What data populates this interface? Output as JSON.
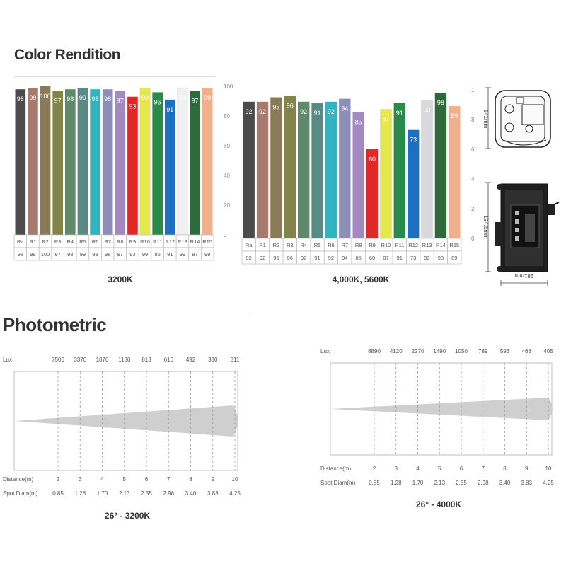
{
  "headings": {
    "color_rendition": "Color Rendition",
    "photometric": "Photometric"
  },
  "captions": {
    "cri_left": "3200K",
    "cri_right": "4,000K, 5600K",
    "photo_left": "26° - 3200K",
    "photo_right": "26° - 4000K"
  },
  "dimensions": {
    "height_label": "141mm",
    "depth_label": "194.5mm",
    "width_label": "181mm"
  },
  "chart_data": [
    {
      "type": "bar",
      "title": "",
      "caption": "3200K",
      "categories": [
        "Ra",
        "R1",
        "R2",
        "R3",
        "R4",
        "R5",
        "R6",
        "R7",
        "R8",
        "R9",
        "R10",
        "R11",
        "R12",
        "R13",
        "R14",
        "R15"
      ],
      "values": [
        98,
        99,
        100,
        97,
        98,
        99,
        98,
        98,
        97,
        93,
        99,
        96,
        91,
        99,
        97,
        99
      ],
      "colors": [
        "#4b4b4b",
        "#a87a6e",
        "#8a7a55",
        "#83844a",
        "#5f8a6a",
        "#5a8a86",
        "#2eb5c0",
        "#8d8fb8",
        "#a389c0",
        "#e02828",
        "#e4e84a",
        "#2a8a4a",
        "#1f6fc0",
        "#f0f0f2",
        "#2e6a3a",
        "#f0b08c"
      ],
      "ylim": [
        0,
        100
      ],
      "yticks": [
        0,
        20,
        40,
        60,
        80,
        100
      ]
    },
    {
      "type": "bar",
      "title": "",
      "caption": "4,000K, 5600K",
      "categories": [
        "Ra",
        "R1",
        "R2",
        "R3",
        "R4",
        "R5",
        "R6",
        "R7",
        "R8",
        "R9",
        "R10",
        "R11",
        "R12",
        "R13",
        "R14",
        "R15"
      ],
      "values": [
        92,
        92,
        95,
        96,
        92,
        91,
        92,
        94,
        85,
        60,
        87,
        91,
        73,
        93,
        98,
        89
      ],
      "colors": [
        "#4b4b4b",
        "#a87a6e",
        "#8a7a55",
        "#83844a",
        "#5f8a6a",
        "#5a8a86",
        "#2eb5c0",
        "#8d8fb8",
        "#a389c0",
        "#e02828",
        "#e4e84a",
        "#2a8a4a",
        "#1f6fc0",
        "#d9d9dd",
        "#2e6a3a",
        "#f0b08c"
      ],
      "ylim": [
        0,
        100
      ],
      "yticks": [
        0,
        20,
        40,
        60,
        80,
        100
      ]
    },
    {
      "type": "table",
      "caption": "26° - 3200K",
      "row_labels": {
        "lux": "Lux",
        "distance": "Distance(m)",
        "spot": "Spot Diam(m)"
      },
      "lux": [
        "7500",
        "3370",
        "1870",
        "1180",
        "813",
        "616",
        "492",
        "380",
        "311"
      ],
      "distance": [
        "2",
        "3",
        "4",
        "5",
        "6",
        "7",
        "8",
        "9",
        "10"
      ],
      "spot_diam": [
        "0.85",
        "1.28",
        "1.70",
        "2.13",
        "2.55",
        "2.98",
        "3.40",
        "3.83",
        "4.25"
      ]
    },
    {
      "type": "table",
      "caption": "26° - 4000K",
      "row_labels": {
        "lux": "Lux",
        "distance": "Distance(m)",
        "spot": "Spot Diam(m)"
      },
      "lux": [
        "8890",
        "4120",
        "2270",
        "1490",
        "1050",
        "789",
        "593",
        "468",
        "405"
      ],
      "distance": [
        "2",
        "3",
        "4",
        "5",
        "6",
        "7",
        "8",
        "9",
        "10"
      ],
      "spot_diam": [
        "0.85",
        "1.28",
        "1.70",
        "2.13",
        "2.55",
        "2.98",
        "3.40",
        "3.83",
        "4.25"
      ]
    }
  ]
}
